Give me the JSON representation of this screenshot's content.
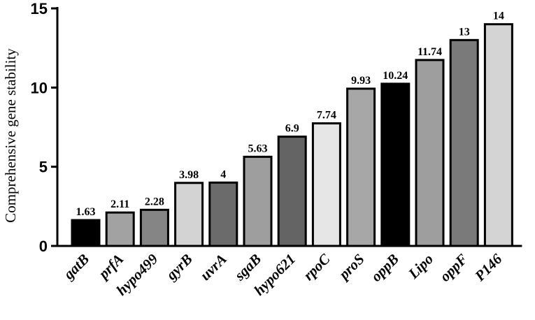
{
  "chart_data": {
    "type": "bar",
    "ylabel": "Comprehensive gene stability",
    "xlabel": "",
    "ylim": [
      0,
      15
    ],
    "yticks": [
      0,
      5,
      10,
      15
    ],
    "grid": false,
    "legend": "none",
    "categories": [
      "gatB",
      "prfA",
      "hypo499",
      "gyrB",
      "uvrA",
      "sgaB",
      "hypo621",
      "rpoC",
      "proS",
      "oppB",
      "Lipo",
      "oppF",
      "P146"
    ],
    "values": [
      1.63,
      2.11,
      2.28,
      3.98,
      4,
      5.63,
      6.9,
      7.74,
      9.93,
      10.24,
      11.74,
      13,
      14
    ],
    "value_labels": [
      "1.63",
      "2.11",
      "2.28",
      "3.98",
      "4",
      "5.63",
      "6.9",
      "7.74",
      "9.93",
      "10.24",
      "11.74",
      "13",
      "14"
    ],
    "bar_colors": [
      "#000000",
      "#a2a2a2",
      "#858585",
      "#d3d3d3",
      "#6b6b6b",
      "#9e9e9e",
      "#646464",
      "#e6e6e6",
      "#a7a7a7",
      "#000000",
      "#9e9e9e",
      "#7a7a7a",
      "#d4d4d4"
    ]
  }
}
